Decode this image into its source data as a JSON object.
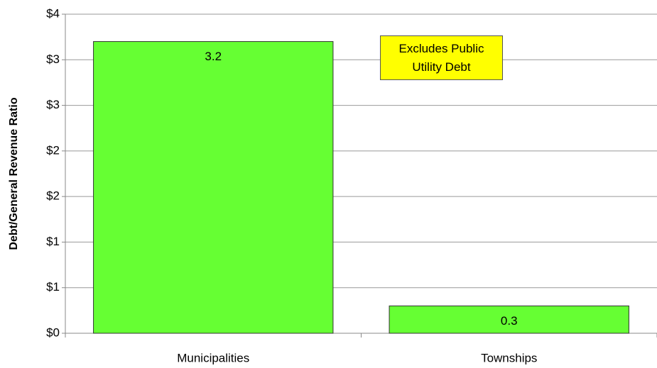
{
  "chart_data": {
    "type": "bar",
    "y_label": "Debt/General Revenue Ratio",
    "annotation": "Excludes Public Utility Debt",
    "categories": [
      "Municipalities",
      "Townships"
    ],
    "values": [
      3.2,
      0.3
    ],
    "color": "#66ff33",
    "ylim": [
      0,
      3.5
    ],
    "yticks": [
      {
        "value": 0,
        "label": "$0"
      },
      {
        "value": 0.5,
        "label": "$1"
      },
      {
        "value": 1,
        "label": "$1"
      },
      {
        "value": 1.5,
        "label": "$2"
      },
      {
        "value": 2,
        "label": "$2"
      },
      {
        "value": 2.5,
        "label": "$3"
      },
      {
        "value": 3,
        "label": "$3"
      },
      {
        "value": 3.5,
        "label": "$4"
      }
    ],
    "grid": true
  }
}
